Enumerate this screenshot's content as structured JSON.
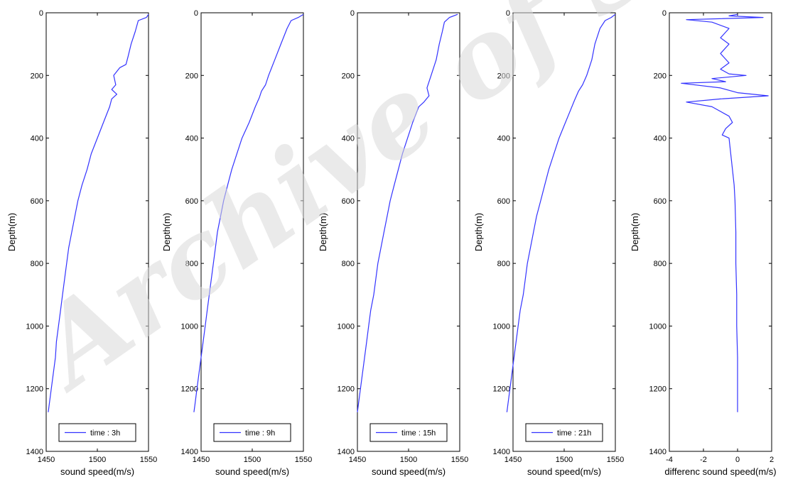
{
  "watermark": "Archive of SID",
  "chart_data": [
    {
      "type": "line",
      "xlabel": "sound speed(m/s)",
      "ylabel": "Depth(m)",
      "xlim": [
        1450,
        1550
      ],
      "ylim": [
        0,
        1400
      ],
      "y_reversed": true,
      "xticks": [
        1450,
        1500,
        1550
      ],
      "yticks": [
        0,
        200,
        400,
        600,
        800,
        1000,
        1200,
        1400
      ],
      "legend_position": "bottom",
      "series": [
        {
          "name": "time : 3h",
          "color": "#3333ff",
          "points": [
            [
              1550,
              5
            ],
            [
              1548,
              15
            ],
            [
              1540,
              25
            ],
            [
              1537,
              60
            ],
            [
              1533,
              100
            ],
            [
              1530,
              140
            ],
            [
              1528,
              165
            ],
            [
              1522,
              175
            ],
            [
              1516,
              200
            ],
            [
              1518,
              230
            ],
            [
              1514,
              245
            ],
            [
              1519,
              260
            ],
            [
              1514,
              275
            ],
            [
              1512,
              300
            ],
            [
              1506,
              350
            ],
            [
              1500,
              400
            ],
            [
              1494,
              450
            ],
            [
              1490,
              500
            ],
            [
              1485,
              550
            ],
            [
              1481,
              600
            ],
            [
              1478,
              650
            ],
            [
              1475,
              700
            ],
            [
              1472,
              750
            ],
            [
              1470,
              800
            ],
            [
              1468,
              850
            ],
            [
              1466,
              900
            ],
            [
              1464,
              950
            ],
            [
              1462,
              1000
            ],
            [
              1460,
              1050
            ],
            [
              1459,
              1100
            ],
            [
              1457,
              1150
            ],
            [
              1455,
              1200
            ],
            [
              1453,
              1250
            ],
            [
              1452,
              1275
            ]
          ]
        }
      ]
    },
    {
      "type": "line",
      "xlabel": "sound speed(m/s)",
      "ylabel": "Depth(m)",
      "xlim": [
        1450,
        1550
      ],
      "ylim": [
        0,
        1400
      ],
      "y_reversed": true,
      "xticks": [
        1450,
        1500,
        1550
      ],
      "yticks": [
        0,
        200,
        400,
        600,
        800,
        1000,
        1200,
        1400
      ],
      "legend_position": "bottom",
      "series": [
        {
          "name": "time : 9h",
          "color": "#3333ff",
          "points": [
            [
              1550,
              5
            ],
            [
              1545,
              15
            ],
            [
              1538,
              25
            ],
            [
              1534,
              50
            ],
            [
              1528,
              100
            ],
            [
              1522,
              150
            ],
            [
              1516,
              200
            ],
            [
              1513,
              230
            ],
            [
              1509,
              250
            ],
            [
              1507,
              270
            ],
            [
              1503,
              300
            ],
            [
              1497,
              350
            ],
            [
              1490,
              400
            ],
            [
              1485,
              450
            ],
            [
              1480,
              500
            ],
            [
              1476,
              550
            ],
            [
              1472,
              600
            ],
            [
              1469,
              650
            ],
            [
              1466,
              700
            ],
            [
              1464,
              750
            ],
            [
              1462,
              800
            ],
            [
              1460,
              850
            ],
            [
              1458,
              900
            ],
            [
              1456,
              950
            ],
            [
              1454,
              1000
            ],
            [
              1452,
              1050
            ],
            [
              1450,
              1100
            ],
            [
              1448,
              1150
            ],
            [
              1446,
              1200
            ],
            [
              1444,
              1250
            ],
            [
              1443,
              1275
            ]
          ]
        }
      ]
    },
    {
      "type": "line",
      "xlabel": "sound speed(m/s)",
      "ylabel": "Depth(m)",
      "xlim": [
        1450,
        1550
      ],
      "ylim": [
        0,
        1400
      ],
      "y_reversed": true,
      "xticks": [
        1450,
        1500,
        1550
      ],
      "yticks": [
        0,
        200,
        400,
        600,
        800,
        1000,
        1200,
        1400
      ],
      "legend_position": "bottom",
      "series": [
        {
          "name": "time : 15h",
          "color": "#3333ff",
          "points": [
            [
              1548,
              5
            ],
            [
              1540,
              15
            ],
            [
              1535,
              30
            ],
            [
              1533,
              60
            ],
            [
              1530,
              100
            ],
            [
              1527,
              150
            ],
            [
              1522,
              200
            ],
            [
              1518,
              240
            ],
            [
              1520,
              265
            ],
            [
              1515,
              285
            ],
            [
              1510,
              300
            ],
            [
              1504,
              350
            ],
            [
              1499,
              400
            ],
            [
              1494,
              450
            ],
            [
              1490,
              500
            ],
            [
              1486,
              550
            ],
            [
              1482,
              600
            ],
            [
              1479,
              650
            ],
            [
              1476,
              700
            ],
            [
              1473,
              750
            ],
            [
              1470,
              800
            ],
            [
              1468,
              850
            ],
            [
              1466,
              900
            ],
            [
              1463,
              950
            ],
            [
              1461,
              1000
            ],
            [
              1459,
              1050
            ],
            [
              1457,
              1100
            ],
            [
              1455,
              1150
            ],
            [
              1453,
              1200
            ],
            [
              1451,
              1250
            ],
            [
              1450,
              1275
            ]
          ]
        }
      ]
    },
    {
      "type": "line",
      "xlabel": "sound speed(m/s)",
      "ylabel": "Depth(m)",
      "xlim": [
        1450,
        1550
      ],
      "ylim": [
        0,
        1400
      ],
      "y_reversed": true,
      "xticks": [
        1450,
        1500,
        1550
      ],
      "yticks": [
        0,
        200,
        400,
        600,
        800,
        1000,
        1200,
        1400
      ],
      "legend_position": "bottom",
      "series": [
        {
          "name": "time : 21h",
          "color": "#3333ff",
          "points": [
            [
              1550,
              5
            ],
            [
              1546,
              15
            ],
            [
              1540,
              25
            ],
            [
              1535,
              50
            ],
            [
              1530,
              100
            ],
            [
              1527,
              150
            ],
            [
              1522,
              200
            ],
            [
              1518,
              230
            ],
            [
              1514,
              250
            ],
            [
              1510,
              280
            ],
            [
              1505,
              320
            ],
            [
              1500,
              360
            ],
            [
              1495,
              400
            ],
            [
              1490,
              450
            ],
            [
              1485,
              500
            ],
            [
              1481,
              550
            ],
            [
              1477,
              600
            ],
            [
              1473,
              650
            ],
            [
              1470,
              700
            ],
            [
              1467,
              750
            ],
            [
              1464,
              800
            ],
            [
              1462,
              850
            ],
            [
              1460,
              900
            ],
            [
              1457,
              950
            ],
            [
              1455,
              1000
            ],
            [
              1453,
              1050
            ],
            [
              1451,
              1100
            ],
            [
              1449,
              1150
            ],
            [
              1447,
              1200
            ],
            [
              1445,
              1250
            ],
            [
              1444,
              1275
            ]
          ]
        }
      ]
    },
    {
      "type": "line",
      "xlabel": "differenc sound speed(m/s)",
      "ylabel": "Depth(m)",
      "xlim": [
        -4,
        2
      ],
      "ylim": [
        0,
        1400
      ],
      "y_reversed": true,
      "xticks": [
        -4,
        -2,
        0,
        2
      ],
      "yticks": [
        0,
        200,
        400,
        600,
        800,
        1000,
        1200,
        1400
      ],
      "series": [
        {
          "name": "",
          "color": "#3333ff",
          "points": [
            [
              0,
              5
            ],
            [
              -0.5,
              10
            ],
            [
              1.5,
              15
            ],
            [
              -3,
              22
            ],
            [
              -1.5,
              30
            ],
            [
              -0.5,
              50
            ],
            [
              -1,
              80
            ],
            [
              -0.5,
              100
            ],
            [
              -1,
              130
            ],
            [
              -0.5,
              160
            ],
            [
              -1,
              180
            ],
            [
              -0.5,
              195
            ],
            [
              0.5,
              200
            ],
            [
              -1.5,
              210
            ],
            [
              -0.7,
              220
            ],
            [
              -3.3,
              225
            ],
            [
              -1,
              240
            ],
            [
              0,
              255
            ],
            [
              1.8,
              265
            ],
            [
              -1,
              275
            ],
            [
              -3,
              285
            ],
            [
              -1.5,
              300
            ],
            [
              -0.5,
              330
            ],
            [
              -0.3,
              350
            ],
            [
              -0.7,
              370
            ],
            [
              -0.9,
              390
            ],
            [
              -0.5,
              400
            ],
            [
              -0.4,
              450
            ],
            [
              -0.3,
              500
            ],
            [
              -0.2,
              550
            ],
            [
              -0.15,
              600
            ],
            [
              -0.1,
              700
            ],
            [
              -0.1,
              800
            ],
            [
              -0.05,
              900
            ],
            [
              -0.05,
              1000
            ],
            [
              0,
              1100
            ],
            [
              0,
              1200
            ],
            [
              0,
              1275
            ]
          ]
        }
      ]
    }
  ]
}
